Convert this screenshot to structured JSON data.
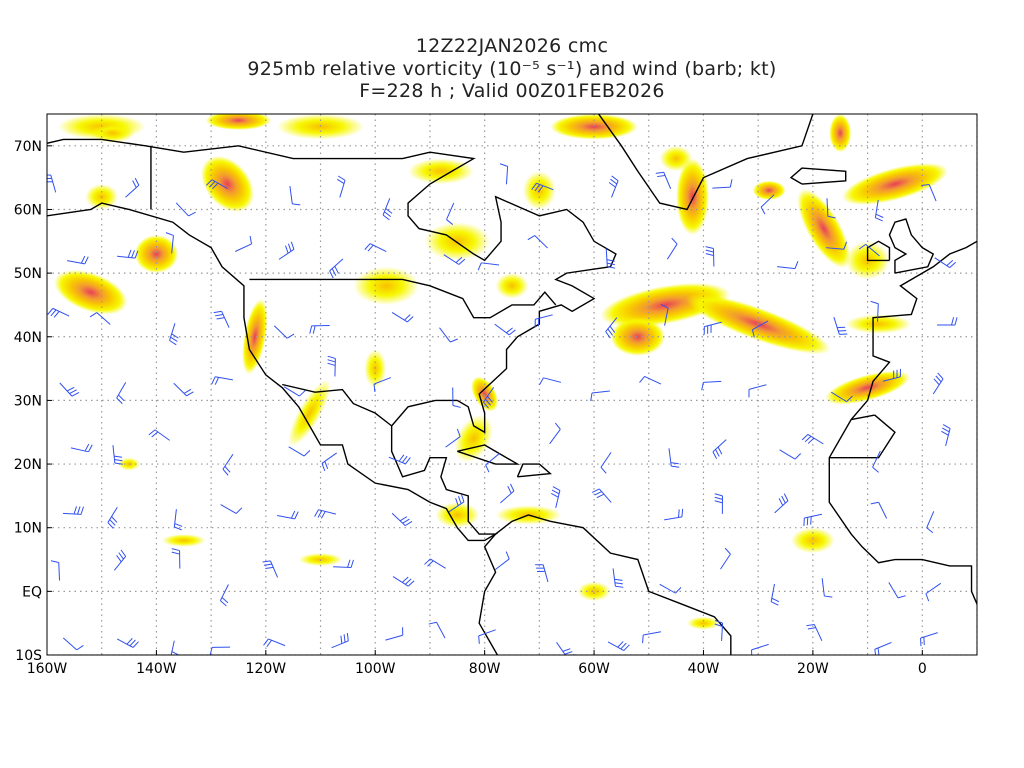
{
  "title": {
    "line1": "12Z22JAN2026 cmc",
    "line2": "925mb relative vorticity (10⁻⁵ s⁻¹) and wind (barb; kt)",
    "line3": "F=228 h ; Valid 00Z01FEB2026"
  },
  "map": {
    "lon_range": [
      -160,
      10
    ],
    "lat_range": [
      -10,
      75
    ],
    "lat_labels": [
      "70N",
      "60N",
      "50N",
      "40N",
      "30N",
      "20N",
      "10N",
      "EQ",
      "10S"
    ],
    "lat_values": [
      70,
      60,
      50,
      40,
      30,
      20,
      10,
      0,
      -10
    ],
    "lon_labels": [
      "160W",
      "140W",
      "120W",
      "100W",
      "80W",
      "60W",
      "40W",
      "20W",
      "0"
    ],
    "lon_values": [
      -160,
      -140,
      -120,
      -100,
      -80,
      -60,
      -40,
      -20,
      0
    ],
    "colors": {
      "shade_low": "#f7f700",
      "shade_mid": "#f8b800",
      "shade_high": "#e8405a",
      "barb": "#3050f0",
      "coast": "#000000",
      "grid": "#999999"
    }
  }
}
